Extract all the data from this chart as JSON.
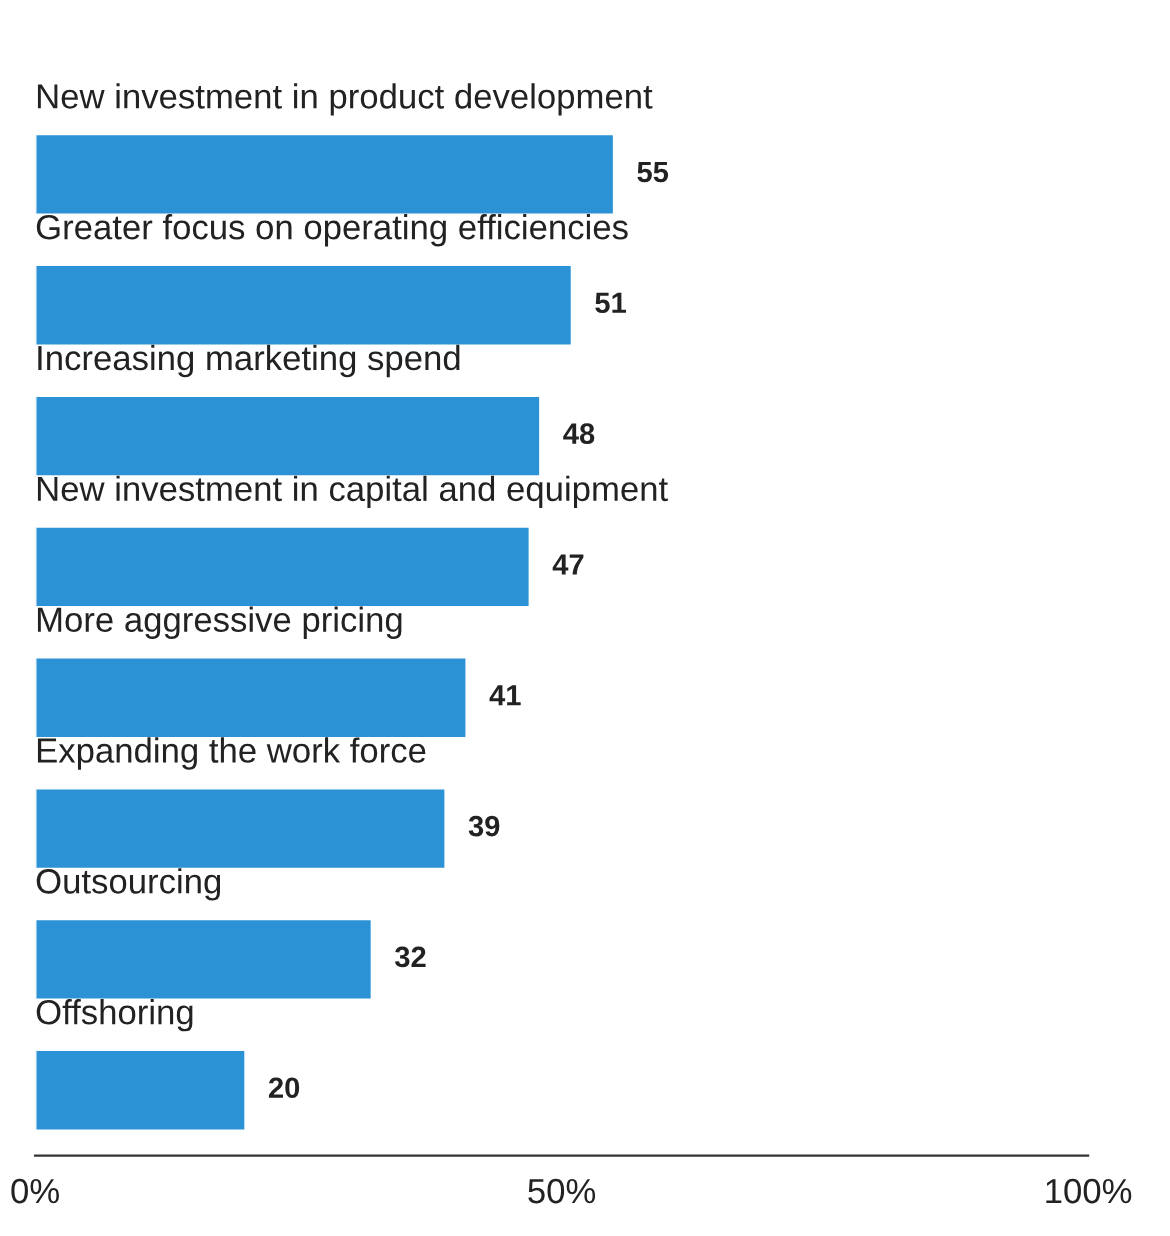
{
  "chart_data": {
    "type": "bar",
    "orientation": "horizontal",
    "categories": [
      "New investment in product development",
      "Greater focus on operating efficiencies",
      "Increasing marketing spend",
      "New investment in capital and equipment",
      "More aggressive pricing",
      "Expanding the work force",
      "Outsourcing",
      "Offshoring"
    ],
    "values": [
      55,
      51,
      48,
      47,
      41,
      39,
      32,
      20
    ],
    "color": "#2b92d5",
    "xlim": [
      0,
      100
    ],
    "xticks": [
      {
        "value": 0,
        "label": "0%"
      },
      {
        "value": 50,
        "label": "50%"
      },
      {
        "value": 100,
        "label": "100%"
      }
    ],
    "data_labels": true,
    "grid": false,
    "legend": false
  }
}
